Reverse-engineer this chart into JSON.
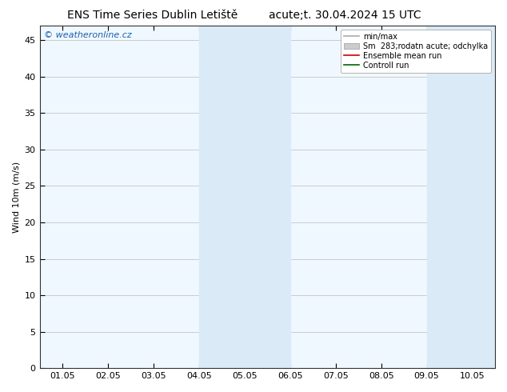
{
  "title_left": "ENS Time Series Dublin Letiště",
  "title_right": "acute;t. 30.04.2024 15 UTC",
  "watermark": "© weatheronline.cz",
  "ylabel": "Wind 10m (m/s)",
  "ylim": [
    0,
    47
  ],
  "yticks": [
    0,
    5,
    10,
    15,
    20,
    25,
    30,
    35,
    40,
    45
  ],
  "xtick_labels": [
    "01.05",
    "02.05",
    "03.05",
    "04.05",
    "05.05",
    "06.05",
    "07.05",
    "08.05",
    "09.05",
    "10.05"
  ],
  "xtick_positions": [
    0,
    1,
    2,
    3,
    4,
    5,
    6,
    7,
    8,
    9
  ],
  "shaded_bands": [
    {
      "xmin": 3.0,
      "xmax": 5.0,
      "color": "#daeaf7"
    },
    {
      "xmin": 8.0,
      "xmax": 9.5,
      "color": "#daeaf7"
    }
  ],
  "xlim": [
    -0.5,
    9.5
  ],
  "legend_items": [
    {
      "label": "min/max",
      "color": "#aaaaaa",
      "linewidth": 1.2,
      "type": "line"
    },
    {
      "label": "Sm  283;rodatn acute; odchylka",
      "color": "#cccccc",
      "type": "band"
    },
    {
      "label": "Ensemble mean run",
      "color": "#cc0000",
      "linewidth": 1.2,
      "type": "line"
    },
    {
      "label": "Controll run",
      "color": "#006600",
      "linewidth": 1.2,
      "type": "line"
    }
  ],
  "background_color": "#ffffff",
  "plot_bg_color": "#f0f8ff",
  "grid_color": "#bbbbbb",
  "title_fontsize": 10,
  "axis_fontsize": 8,
  "watermark_color": "#1a5faa",
  "watermark_fontsize": 8
}
